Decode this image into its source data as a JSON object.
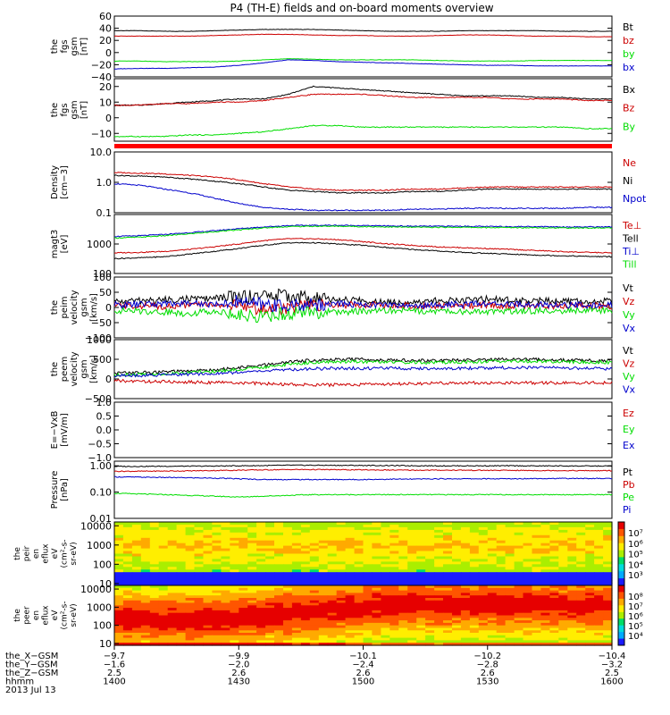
{
  "chart_data": {
    "type": "line",
    "title": "P4 (TH-E) fields and on-board moments overview",
    "panels": [
      {
        "ylabel": [
          "the",
          "fgs",
          "gsm",
          "[nT]"
        ],
        "ylim": [
          -40,
          60
        ],
        "ticks": [
          60,
          40,
          20,
          0,
          -20,
          -40
        ],
        "tick_labels": [
          "60",
          "40",
          "20",
          "0",
          "−20",
          "−40"
        ],
        "series": [
          {
            "name": "Bt",
            "color": "#000000",
            "values": [
              36,
              36,
              35,
              35,
              36,
              37,
              38,
              38,
              38,
              37,
              36,
              35,
              35,
              35,
              36,
              36,
              36,
              36,
              35,
              35,
              35
            ]
          },
          {
            "name": "bz",
            "color": "#cc0000",
            "values": [
              27,
              27,
              27,
              27,
              28,
              29,
              30,
              30,
              29,
              28,
              28,
              27,
              27,
              28,
              29,
              29,
              28,
              27,
              27,
              26,
              26
            ]
          },
          {
            "name": "by",
            "color": "#00dd00",
            "values": [
              -14,
              -14,
              -15,
              -15,
              -15,
              -14,
              -12,
              -10,
              -11,
              -12,
              -12,
              -12,
              -12,
              -13,
              -14,
              -14,
              -14,
              -13,
              -13,
              -13,
              -13
            ]
          },
          {
            "name": "bx",
            "color": "#0000cc",
            "values": [
              -27,
              -26,
              -26,
              -25,
              -24,
              -21,
              -17,
              -12,
              -13,
              -15,
              -16,
              -17,
              -18,
              -19,
              -20,
              -21,
              -21,
              -22,
              -22,
              -22,
              -22
            ]
          }
        ]
      },
      {
        "ylabel": [
          "the",
          "fgs",
          "gsm",
          "[nT]"
        ],
        "ylim": [
          -15,
          25
        ],
        "ticks": [
          20,
          10,
          0,
          -10
        ],
        "tick_labels": [
          "20",
          "10",
          "0",
          "−10"
        ],
        "series": [
          {
            "name": "Bx",
            "color": "#000000",
            "values": [
              8,
              8,
              9,
              10,
              11,
              12,
              12,
              15,
              20,
              19,
              18,
              17,
              16,
              15,
              14,
              14,
              14,
              13,
              13,
              12,
              12
            ]
          },
          {
            "name": "Bz",
            "color": "#cc0000",
            "values": [
              8,
              8,
              9,
              9,
              10,
              10,
              11,
              13,
              15,
              15,
              15,
              14,
              13,
              13,
              13,
              13,
              12,
              12,
              12,
              11,
              11
            ]
          },
          {
            "name": "By",
            "color": "#00dd00",
            "values": [
              -12,
              -12,
              -12,
              -11,
              -11,
              -10,
              -9,
              -7,
              -5,
              -5,
              -6,
              -6,
              -6,
              -6,
              -6,
              -6,
              -6,
              -6,
              -6,
              -7,
              -7
            ]
          }
        ]
      },
      {
        "ylabel": [
          "Density",
          "[cm−3]"
        ],
        "ylim": [
          0.1,
          10
        ],
        "log": true,
        "ticks": [
          10,
          1,
          0.1
        ],
        "tick_labels": [
          "10.0",
          "1.0",
          "0.1"
        ],
        "series": [
          {
            "name": "Ne",
            "color": "#cc0000",
            "values": [
              2.1,
              2.0,
              1.9,
              1.7,
              1.5,
              1.2,
              0.9,
              0.7,
              0.6,
              0.55,
              0.55,
              0.55,
              0.6,
              0.6,
              0.65,
              0.7,
              0.7,
              0.7,
              0.7,
              0.7,
              0.7
            ]
          },
          {
            "name": "Ni",
            "color": "#000000",
            "values": [
              1.7,
              1.6,
              1.5,
              1.3,
              1.1,
              0.9,
              0.7,
              0.55,
              0.5,
              0.45,
              0.45,
              0.45,
              0.5,
              0.5,
              0.55,
              0.6,
              0.6,
              0.6,
              0.6,
              0.6,
              0.6
            ]
          },
          {
            "name": "Npot",
            "color": "#0000cc",
            "values": [
              0.9,
              0.8,
              0.6,
              0.45,
              0.3,
              0.2,
              0.15,
              0.13,
              0.12,
              0.12,
              0.12,
              0.12,
              0.13,
              0.13,
              0.14,
              0.14,
              0.14,
              0.14,
              0.14,
              0.15,
              0.15
            ]
          }
        ]
      },
      {
        "ylabel": [
          "magt3",
          "[eV]"
        ],
        "ylim": [
          100,
          10000
        ],
        "log": true,
        "ticks": [
          1000,
          100
        ],
        "tick_labels": [
          "1000",
          "100"
        ],
        "series": [
          {
            "name": "Te⊥",
            "color": "#cc0000",
            "values": [
              500,
              520,
              560,
              650,
              800,
              1000,
              1300,
              1500,
              1500,
              1400,
              1200,
              1000,
              900,
              800,
              750,
              700,
              650,
              600,
              550,
              520,
              500
            ]
          },
          {
            "name": "Tell",
            "color": "#000000",
            "values": [
              320,
              340,
              370,
              450,
              560,
              700,
              900,
              1100,
              1100,
              1000,
              900,
              750,
              650,
              580,
              520,
              480,
              450,
              420,
              400,
              380,
              370
            ]
          },
          {
            "name": "Ti⊥",
            "color": "#0000cc",
            "values": [
              1800,
              1900,
              2100,
              2400,
              2800,
              3300,
              3800,
              4200,
              4300,
              4300,
              4200,
              4100,
              4000,
              4000,
              4000,
              3900,
              3900,
              3900,
              3800,
              3800,
              3800
            ]
          },
          {
            "name": "Till",
            "color": "#00dd00",
            "values": [
              1600,
              1700,
              1900,
              2200,
              2600,
              3000,
              3500,
              3900,
              4000,
              4000,
              3900,
              3800,
              3700,
              3700,
              3700,
              3600,
              3600,
              3600,
              3500,
              3500,
              3500
            ]
          }
        ]
      },
      {
        "ylabel": [
          "the",
          "peim",
          "velocity",
          "gsm",
          "[km/s]"
        ],
        "ylim": [
          -100,
          100
        ],
        "ticks": [
          100,
          50,
          0,
          -50,
          -100
        ],
        "tick_labels": [
          "100",
          "50",
          "0",
          "−50",
          "−100"
        ],
        "series": [
          {
            "name": "Vt",
            "color": "#000000",
            "values": [
              20,
              22,
              25,
              28,
              30,
              35,
              40,
              38,
              30,
              25,
              22,
              20,
              20,
              22,
              25,
              28,
              24,
              22,
              20,
              20,
              20
            ]
          },
          {
            "name": "Vz",
            "color": "#cc0000",
            "values": [
              5,
              6,
              4,
              8,
              10,
              5,
              -5,
              0,
              5,
              8,
              10,
              8,
              6,
              5,
              6,
              8,
              6,
              5,
              4,
              5,
              5
            ]
          },
          {
            "name": "Vy",
            "color": "#00dd00",
            "values": [
              -10,
              -12,
              -15,
              -20,
              -10,
              -25,
              -30,
              -20,
              -15,
              -15,
              -12,
              -10,
              -10,
              -12,
              -15,
              -15,
              -12,
              -10,
              -10,
              -10,
              -10
            ]
          },
          {
            "name": "Vx",
            "color": "#0000cc",
            "values": [
              8,
              10,
              12,
              15,
              10,
              20,
              10,
              5,
              10,
              12,
              10,
              8,
              6,
              8,
              10,
              12,
              10,
              8,
              8,
              8,
              8
            ]
          }
        ]
      },
      {
        "ylabel": [
          "the",
          "peem",
          "velocity",
          "gsm",
          "[km/s]"
        ],
        "ylim": [
          -500,
          1000
        ],
        "ticks": [
          1000,
          500,
          0,
          -500
        ],
        "tick_labels": [
          "1000",
          "500",
          "0",
          "−500"
        ],
        "series": [
          {
            "name": "Vt",
            "color": "#000000",
            "values": [
              150,
              160,
              180,
              200,
              230,
              280,
              350,
              430,
              480,
              500,
              500,
              480,
              470,
              470,
              480,
              490,
              500,
              500,
              480,
              470,
              460
            ]
          },
          {
            "name": "Vz",
            "color": "#cc0000",
            "values": [
              -50,
              -60,
              -70,
              -80,
              -90,
              -100,
              -120,
              -140,
              -150,
              -150,
              -140,
              -130,
              -120,
              -110,
              -100,
              -100,
              -100,
              -100,
              -100,
              -100,
              -100
            ]
          },
          {
            "name": "Vy",
            "color": "#00dd00",
            "values": [
              100,
              110,
              130,
              160,
              190,
              240,
              300,
              370,
              420,
              440,
              440,
              430,
              420,
              420,
              430,
              440,
              450,
              450,
              440,
              430,
              420
            ]
          },
          {
            "name": "Vx",
            "color": "#0000cc",
            "values": [
              80,
              90,
              100,
              120,
              140,
              170,
              200,
              240,
              260,
              270,
              270,
              270,
              260,
              260,
              270,
              280,
              290,
              290,
              280,
              270,
              260
            ]
          }
        ]
      },
      {
        "ylabel": [
          "E=−VxB",
          "[mV/m]"
        ],
        "ylim": [
          -1,
          1
        ],
        "ticks": [
          1,
          0.5,
          0,
          -0.5,
          -1
        ],
        "tick_labels": [
          "1.0",
          "0.5",
          "0.0",
          "−0.5",
          "−1.0"
        ],
        "series": [
          {
            "name": "Ez",
            "color": "#cc0000",
            "values": []
          },
          {
            "name": "Ey",
            "color": "#00dd00",
            "values": []
          },
          {
            "name": "Ex",
            "color": "#0000cc",
            "values": []
          }
        ]
      },
      {
        "ylabel": [
          "Pressure",
          "[nPa]"
        ],
        "ylim": [
          0.01,
          1.5
        ],
        "log": true,
        "ticks": [
          1,
          0.1,
          0.01
        ],
        "tick_labels": [
          "1.00",
          "0.10",
          "0.01"
        ],
        "series": [
          {
            "name": "Pt",
            "color": "#000000",
            "values": [
              0.95,
              0.95,
              0.96,
              0.97,
              0.98,
              1.0,
              1.02,
              1.05,
              1.05,
              1.04,
              1.03,
              1.02,
              1.01,
              1.0,
              1.0,
              1.0,
              1.0,
              0.99,
              0.99,
              0.98,
              0.98
            ]
          },
          {
            "name": "Pb",
            "color": "#cc0000",
            "values": [
              0.62,
              0.62,
              0.63,
              0.64,
              0.66,
              0.68,
              0.7,
              0.72,
              0.72,
              0.71,
              0.7,
              0.69,
              0.68,
              0.68,
              0.68,
              0.67,
              0.67,
              0.66,
              0.66,
              0.65,
              0.65
            ]
          },
          {
            "name": "Pe",
            "color": "#00dd00",
            "values": [
              0.09,
              0.085,
              0.08,
              0.075,
              0.07,
              0.065,
              0.07,
              0.075,
              0.08,
              0.08,
              0.08,
              0.08,
              0.08,
              0.08,
              0.08,
              0.08,
              0.08,
              0.08,
              0.08,
              0.08,
              0.08
            ]
          },
          {
            "name": "Pi",
            "color": "#0000cc",
            "values": [
              0.38,
              0.37,
              0.36,
              0.35,
              0.34,
              0.32,
              0.3,
              0.3,
              0.3,
              0.3,
              0.3,
              0.31,
              0.31,
              0.32,
              0.32,
              0.32,
              0.32,
              0.33,
              0.33,
              0.33,
              0.33
            ]
          }
        ]
      }
    ],
    "spectrograms": [
      {
        "ylabel": [
          "the",
          "peir",
          "en",
          "eflux",
          "eV",
          "(cm²-s-",
          "sr-eV)"
        ],
        "yticks": [
          10000,
          1000,
          100,
          10
        ],
        "tick_labels": [
          "10000",
          "1000",
          "100",
          "10"
        ],
        "colorbar_labels": [
          "10⁷",
          "10⁶",
          "10⁵",
          "10⁴",
          "10³"
        ]
      },
      {
        "ylabel": [
          "the",
          "peer",
          "en",
          "eflux",
          "eV",
          "(cm²-s-",
          "sr-eV)"
        ],
        "yticks": [
          10000,
          1000,
          100,
          10
        ],
        "tick_labels": [
          "10000",
          "1000",
          "100",
          "10"
        ],
        "colorbar_labels": [
          "10⁸",
          "10⁷",
          "10⁶",
          "10⁵",
          "10⁴"
        ]
      }
    ],
    "x_axis": {
      "row_labels": [
        "the_X−GSM",
        "the_Y−GSM",
        "the_Z−GSM",
        "hhmm",
        "2013 Jul 13"
      ],
      "ticks": [
        {
          "X": "−9.7",
          "Y": "−1.6",
          "Z": "2.5",
          "hhmm": "1400"
        },
        {
          "X": "−9.9",
          "Y": "−2.0",
          "Z": "2.6",
          "hhmm": "1430"
        },
        {
          "X": "−10.1",
          "Y": "−2.4",
          "Z": "2.6",
          "hhmm": "1500"
        },
        {
          "X": "−10.2",
          "Y": "−2.8",
          "Z": "2.6",
          "hhmm": "1530"
        },
        {
          "X": "−10.4",
          "Y": "−3.2",
          "Z": "2.5",
          "hhmm": "1600"
        }
      ]
    }
  }
}
